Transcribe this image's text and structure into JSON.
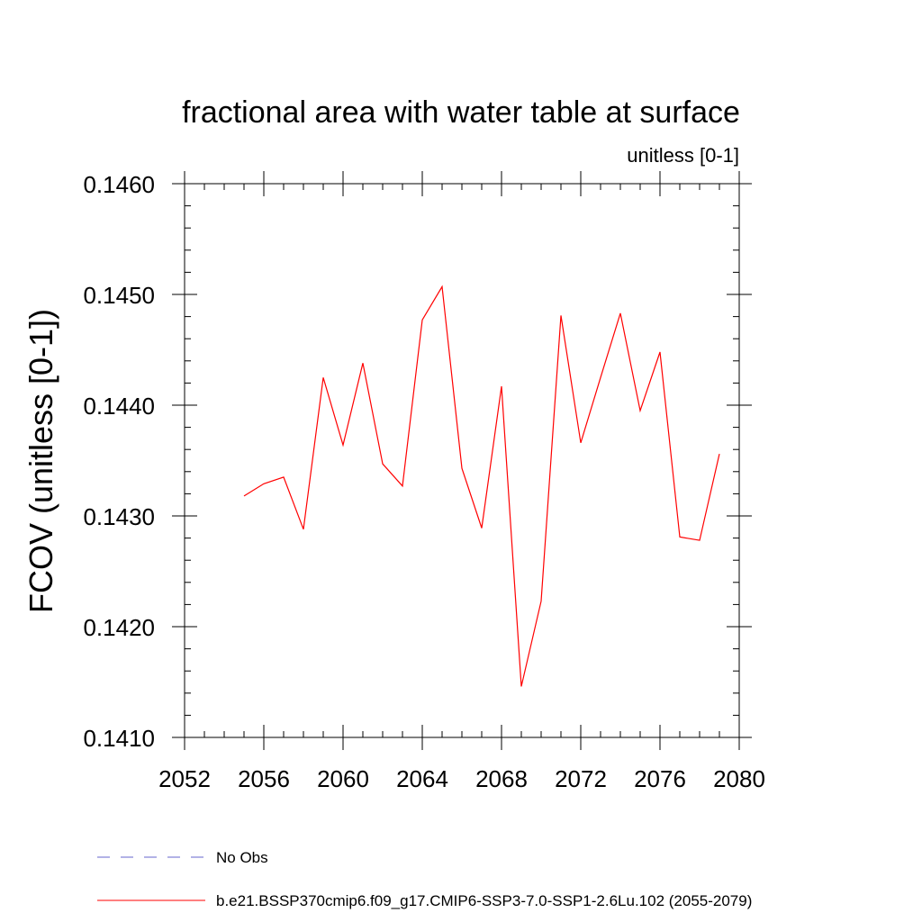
{
  "chart_data": {
    "type": "line",
    "title": "fractional area with water table at surface",
    "subtitle": "unitless [0-1]",
    "xlabel": "",
    "ylabel": "FCOV  (unitless [0-1])",
    "xlim": [
      2052,
      2080
    ],
    "ylim": [
      0.141,
      0.146
    ],
    "x_ticks": [
      2052,
      2056,
      2060,
      2064,
      2068,
      2072,
      2076,
      2080
    ],
    "y_ticks": [
      0.141,
      0.142,
      0.143,
      0.144,
      0.145,
      0.146
    ],
    "x_tick_labels": [
      "2052",
      "2056",
      "2060",
      "2064",
      "2068",
      "2072",
      "2076",
      "2080"
    ],
    "y_tick_labels": [
      "0.1410",
      "0.1420",
      "0.1430",
      "0.1440",
      "0.1450",
      "0.1460"
    ],
    "grid": false,
    "legend_position": "bottom",
    "series": [
      {
        "name": "No Obs",
        "color": "#6666cc",
        "dash": "dashed",
        "x": [],
        "values": []
      },
      {
        "name": "b.e21.BSSP370cmip6.f09_g17.CMIP6-SSP3-7.0-SSP1-2.6Lu.102 (2055-2079)",
        "color": "#ff0000",
        "dash": "solid",
        "x": [
          2055,
          2056,
          2057,
          2058,
          2059,
          2060,
          2061,
          2062,
          2063,
          2064,
          2065,
          2066,
          2067,
          2068,
          2069,
          2070,
          2071,
          2072,
          2073,
          2074,
          2075,
          2076,
          2077,
          2078,
          2079
        ],
        "values": [
          0.14318,
          0.14329,
          0.14335,
          0.14288,
          0.14425,
          0.14364,
          0.14438,
          0.14347,
          0.14327,
          0.14477,
          0.14507,
          0.14343,
          0.14289,
          0.14417,
          0.14146,
          0.14223,
          0.14481,
          0.14366,
          0.14425,
          0.14483,
          0.14395,
          0.14448,
          0.14281,
          0.14278,
          0.14356
        ]
      }
    ]
  }
}
